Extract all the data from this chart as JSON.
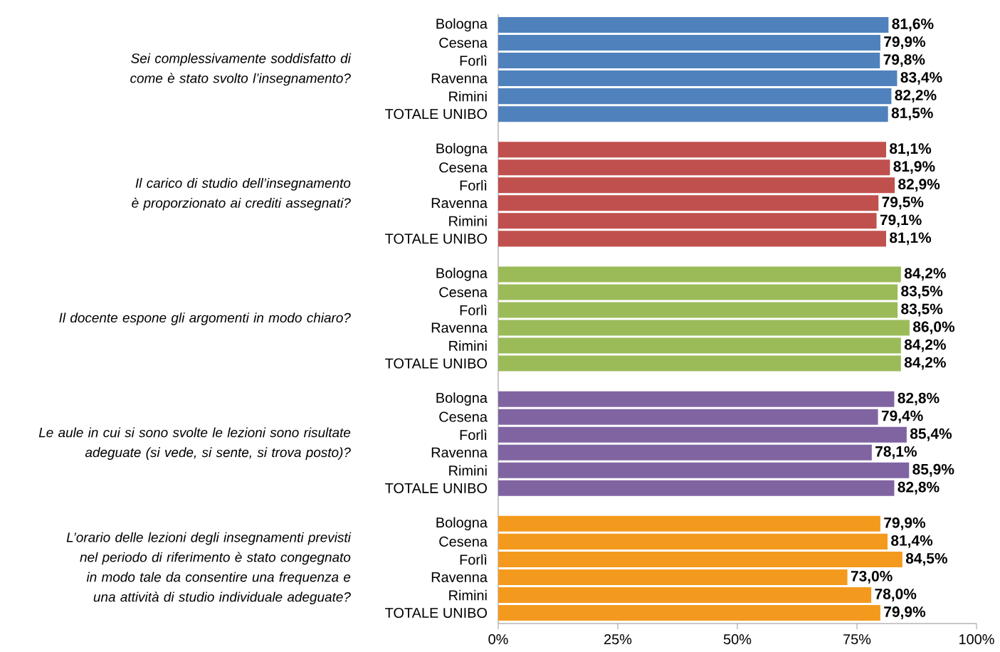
{
  "chart_data": {
    "type": "bar",
    "orientation": "horizontal",
    "categories": [
      "Bologna",
      "Cesena",
      "Forlì",
      "Ravenna",
      "Rimini",
      "TOTALE UNIBO",
      "Bologna",
      "Cesena",
      "Forlì",
      "Ravenna",
      "Rimini",
      "TOTALE UNIBO",
      "Bologna",
      "Cesena",
      "Forlì",
      "Ravenna",
      "Rimini",
      "TOTALE UNIBO",
      "Bologna",
      "Cesena",
      "Forlì",
      "Ravenna",
      "Rimini",
      "TOTALE UNIBO",
      "Bologna",
      "Cesena",
      "Forlì",
      "Ravenna",
      "Rimini",
      "TOTALE UNIBO"
    ],
    "series": [
      {
        "color": "#4f81bd",
        "values": [
          81.6,
          79.9,
          79.8,
          83.4,
          82.2,
          81.5,
          null,
          null,
          null,
          null,
          null,
          null,
          null,
          null,
          null,
          null,
          null,
          null,
          null,
          null,
          null,
          null,
          null,
          null,
          null,
          null,
          null,
          null,
          null,
          null
        ],
        "value_labels": [
          "81,6%",
          "79,9%",
          "79,8%",
          "83,4%",
          "82,2%",
          "81,5%",
          null,
          null,
          null,
          null,
          null,
          null,
          null,
          null,
          null,
          null,
          null,
          null,
          null,
          null,
          null,
          null,
          null,
          null,
          null,
          null,
          null,
          null,
          null,
          null
        ]
      },
      {
        "color": "#c0504d",
        "values": [
          null,
          null,
          null,
          null,
          null,
          null,
          81.1,
          81.9,
          82.9,
          79.5,
          79.1,
          81.1,
          null,
          null,
          null,
          null,
          null,
          null,
          null,
          null,
          null,
          null,
          null,
          null,
          null,
          null,
          null,
          null,
          null,
          null
        ],
        "value_labels": [
          null,
          null,
          null,
          null,
          null,
          null,
          "81,1%",
          "81,9%",
          "82,9%",
          "79,5%",
          "79,1%",
          "81,1%",
          null,
          null,
          null,
          null,
          null,
          null,
          null,
          null,
          null,
          null,
          null,
          null,
          null,
          null,
          null,
          null,
          null,
          null
        ]
      },
      {
        "color": "#9bbb59",
        "values": [
          null,
          null,
          null,
          null,
          null,
          null,
          null,
          null,
          null,
          null,
          null,
          null,
          84.2,
          83.5,
          83.5,
          86.0,
          84.2,
          84.2,
          null,
          null,
          null,
          null,
          null,
          null,
          null,
          null,
          null,
          null,
          null,
          null
        ],
        "value_labels": [
          null,
          null,
          null,
          null,
          null,
          null,
          null,
          null,
          null,
          null,
          null,
          null,
          "84,2%",
          "83,5%",
          "83,5%",
          "86,0%",
          "84,2%",
          "84,2%",
          null,
          null,
          null,
          null,
          null,
          null,
          null,
          null,
          null,
          null,
          null,
          null
        ]
      },
      {
        "color": "#8064a2",
        "values": [
          null,
          null,
          null,
          null,
          null,
          null,
          null,
          null,
          null,
          null,
          null,
          null,
          null,
          null,
          null,
          null,
          null,
          null,
          82.8,
          79.4,
          85.4,
          78.1,
          85.9,
          82.8,
          null,
          null,
          null,
          null,
          null,
          null
        ],
        "value_labels": [
          null,
          null,
          null,
          null,
          null,
          null,
          null,
          null,
          null,
          null,
          null,
          null,
          null,
          null,
          null,
          null,
          null,
          null,
          "82,8%",
          "79,4%",
          "85,4%",
          "78,1%",
          "85,9%",
          "82,8%",
          null,
          null,
          null,
          null,
          null,
          null
        ]
      },
      {
        "color": "#f39a1e",
        "values": [
          null,
          null,
          null,
          null,
          null,
          null,
          null,
          null,
          null,
          null,
          null,
          null,
          null,
          null,
          null,
          null,
          null,
          null,
          null,
          null,
          null,
          null,
          null,
          null,
          79.9,
          81.4,
          84.5,
          73.0,
          78.0,
          79.9
        ],
        "value_labels": [
          null,
          null,
          null,
          null,
          null,
          null,
          null,
          null,
          null,
          null,
          null,
          null,
          null,
          null,
          null,
          null,
          null,
          null,
          null,
          null,
          null,
          null,
          null,
          null,
          "79,9%",
          "81,4%",
          "84,5%",
          "73,0%",
          "78,0%",
          "79,9%"
        ]
      }
    ],
    "xlim": [
      0,
      100
    ],
    "xticks": [
      {
        "value": 0,
        "label": "0%"
      },
      {
        "value": 25,
        "label": "25%"
      },
      {
        "value": 50,
        "label": "50%"
      },
      {
        "value": 75,
        "label": "75%"
      },
      {
        "value": 100,
        "label": "100%"
      }
    ],
    "annotations": [
      "Sei complessivamente soddisfatto di come è stato svolto l’insegnamento?",
      "Il carico di studio dell’insegnamento è proporzionato ai crediti assegnati?",
      "Il docente espone gli argomenti in modo chiaro?",
      "Le aule in cui si sono svolte le lezioni sono risultate adeguate (si vede, si sente, si trova posto)?",
      "L’orario delle lezioni degli insegnamenti previsti nel periodo di riferimento è stato congegnato in modo tale da consentire una frequenza e una attività di studio individuale adeguate?"
    ],
    "grid": false
  }
}
